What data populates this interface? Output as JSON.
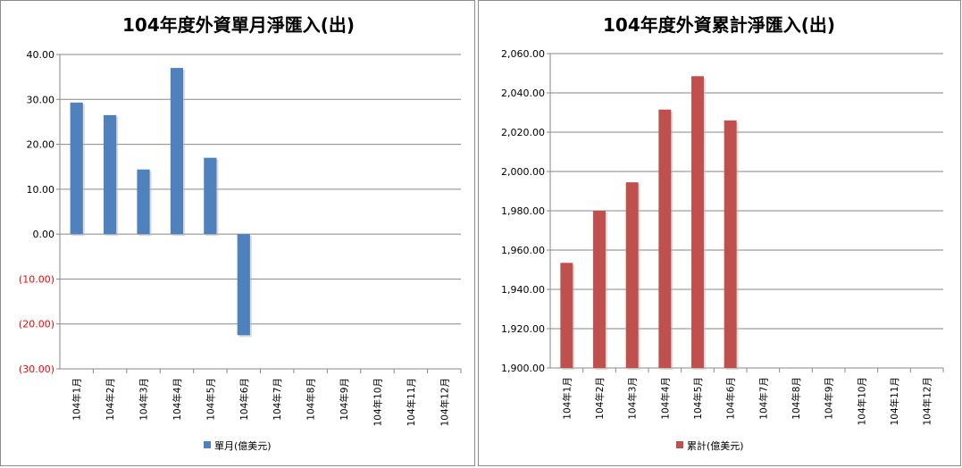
{
  "chart_data": [
    {
      "type": "bar",
      "title": "104年度外資單月淨匯入(出)",
      "categories": [
        "104年1月",
        "104年2月",
        "104年3月",
        "104年4月",
        "104年5月",
        "104年6月",
        "104年7月",
        "104年8月",
        "104年9月",
        "104年10月",
        "104年11月",
        "104年12月"
      ],
      "series": [
        {
          "name": "單月(億美元)",
          "color": "#4f81bd",
          "values": [
            29.3,
            26.5,
            14.4,
            37.0,
            17.0,
            -22.5,
            null,
            null,
            null,
            null,
            null,
            null
          ]
        }
      ],
      "ylim": [
        -30,
        40
      ],
      "yticks": [
        40,
        30,
        20,
        10,
        0,
        -10,
        -20,
        -30
      ],
      "ytick_labels": [
        "40.00",
        "30.00",
        "20.00",
        "10.00",
        "0.00",
        "(10.00)",
        "(20.00)",
        "(30.00)"
      ],
      "negative_label_color": "#ff0000",
      "legend": "單月(億美元)",
      "legend_position": "bottom"
    },
    {
      "type": "bar",
      "title": "104年度外資累計淨匯入(出)",
      "categories": [
        "104年1月",
        "104年2月",
        "104年3月",
        "104年4月",
        "104年5月",
        "104年6月",
        "104年7月",
        "104年8月",
        "104年9月",
        "104年10月",
        "104年11月",
        "104年12月"
      ],
      "series": [
        {
          "name": "累計(億美元)",
          "color": "#c0504d",
          "values": [
            1953.5,
            1980.0,
            1994.5,
            2031.5,
            2048.5,
            2026.0,
            null,
            null,
            null,
            null,
            null,
            null
          ]
        }
      ],
      "ylim": [
        1900,
        2060
      ],
      "yticks": [
        2060,
        2040,
        2020,
        2000,
        1980,
        1960,
        1940,
        1920,
        1900
      ],
      "ytick_labels": [
        "2,060.00",
        "2,040.00",
        "2,020.00",
        "2,000.00",
        "1,980.00",
        "1,960.00",
        "1,940.00",
        "1,920.00",
        "1,900.00"
      ],
      "negative_label_color": "#ff0000",
      "legend": "累計(億美元)",
      "legend_position": "bottom"
    }
  ]
}
